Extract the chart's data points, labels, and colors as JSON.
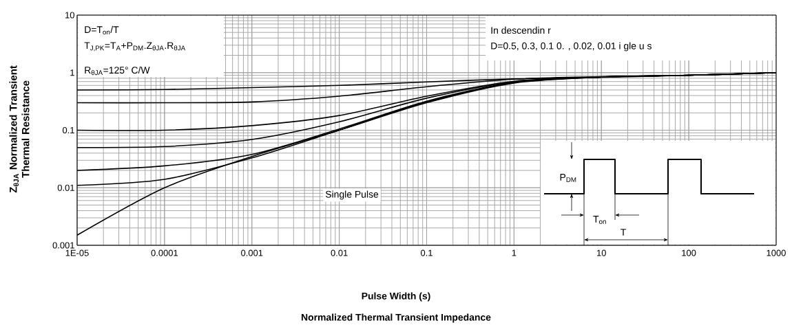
{
  "chart_data": {
    "type": "line",
    "title": "Normalized Thermal Transient Impedance",
    "xlabel": "Pulse Width (s)",
    "ylabel": "Z$_{θJA}$ Normalized Transient Thermal Resistance",
    "log": "xy",
    "grid": true,
    "xlim": [
      1e-05,
      1000
    ],
    "ylim": [
      0.001,
      10
    ],
    "xticks": [
      {
        "value": 1e-05,
        "label": "1E-05"
      },
      0.0001,
      0.001,
      0.01,
      0.1,
      1,
      10,
      100,
      1000
    ],
    "yticks": [
      0.001,
      0.01,
      0.1,
      1,
      10
    ],
    "x": [
      1e-05,
      0.0001,
      0.001,
      0.01,
      0.1,
      1,
      10,
      100,
      1000
    ],
    "series": [
      {
        "color": "#000000",
        "values": [
          0.5,
          0.51,
          0.55,
          0.6,
          0.69,
          0.78,
          0.83,
          0.9,
          1.0
        ]
      },
      {
        "color": "#000000",
        "values": [
          0.3,
          0.3,
          0.31,
          0.39,
          0.57,
          0.77,
          0.85,
          0.9,
          1.0
        ]
      },
      {
        "color": "#000000",
        "values": [
          0.1,
          0.1,
          0.12,
          0.18,
          0.39,
          0.71,
          0.84,
          0.9,
          1.0
        ]
      },
      {
        "color": "#000000",
        "values": [
          0.05,
          0.052,
          0.069,
          0.14,
          0.36,
          0.69,
          0.84,
          0.9,
          1.0
        ]
      },
      {
        "color": "#000000",
        "values": [
          0.02,
          0.024,
          0.038,
          0.105,
          0.32,
          0.68,
          0.84,
          0.9,
          1.0
        ]
      },
      {
        "color": "#000000",
        "values": [
          0.011,
          0.014,
          0.033,
          0.1,
          0.31,
          0.67,
          0.84,
          0.9,
          1.0
        ]
      },
      {
        "color": "#000000",
        "values": [
          0.0015,
          0.01,
          0.035,
          0.1,
          0.3,
          0.66,
          0.84,
          0.9,
          1.0
        ]
      }
    ],
    "annotations": [
      "D=T$_{on}$/T",
      "T$_{J,PK}$=T$_{A}$+P$_{DM}$.Z$_{θJA}$.R$_{θJA}$",
      "R$_{θJA}$=125° C/W",
      "In descendin r",
      "D=0.5, 0.3, 0.1 0. , 0.02, 0.01 i gle u s",
      "Single Pulse",
      "P$_{DM}$",
      "T$_{on}$",
      "T"
    ]
  }
}
